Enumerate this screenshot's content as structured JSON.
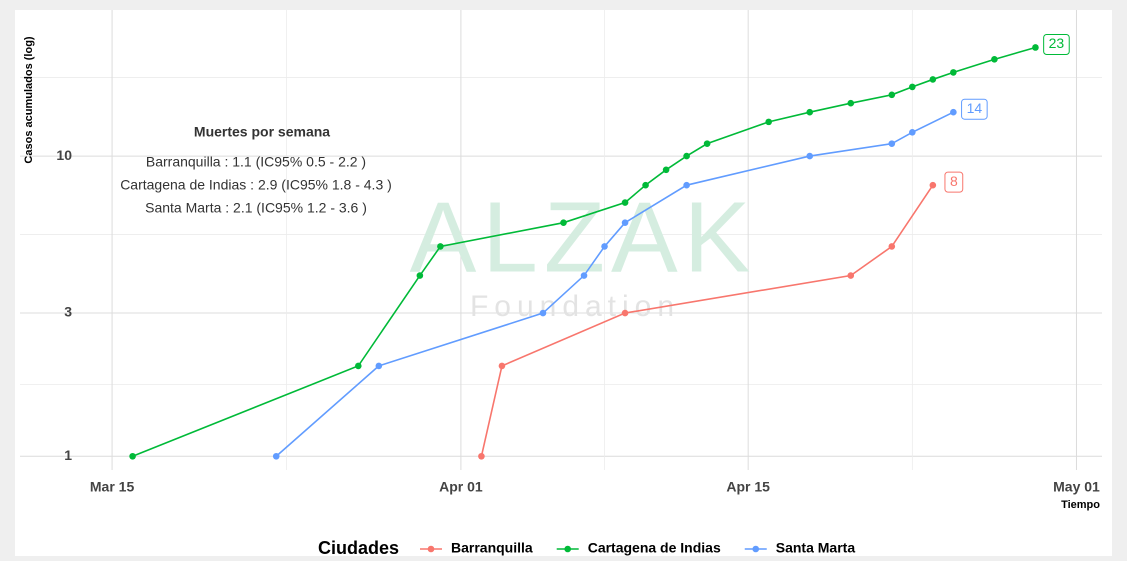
{
  "chart_data": {
    "type": "line",
    "y_label": "Casos acumulados (log)",
    "x_label": "Tiempo",
    "log_y": true,
    "grid": true,
    "xlim": [
      "03-11",
      "05-02"
    ],
    "xticks": [
      {
        "value": "03-15",
        "label": "Mar 15"
      },
      {
        "value": "04-01",
        "label": "Apr 01"
      },
      {
        "value": "04-15",
        "label": "Apr 15"
      },
      {
        "value": "05-01",
        "label": "May 01"
      }
    ],
    "ylim": [
      0.9,
      26.3
    ],
    "yticks": [
      1,
      3,
      10
    ],
    "legend_title": "Ciudades",
    "legend_position": "bottom",
    "annotation": {
      "title": "Muertes por semana",
      "lines": [
        "Barranquilla : 1.1 (IC95% 0.5 - 2.2 )",
        "Cartagena de Indias : 2.9 (IC95% 1.8 - 4.3 )",
        "Santa Marta : 2.1 (IC95% 1.2 - 3.6 )"
      ]
    },
    "watermark": {
      "title": "ALZAK",
      "subtitle": "Foundation"
    },
    "series": [
      {
        "name": "Barranquilla",
        "color": "#F8766D",
        "x": [
          "04-02",
          "04-03",
          "04-09",
          "04-20",
          "04-22",
          "04-24"
        ],
        "values": [
          1,
          2,
          3,
          4,
          5,
          8
        ]
      },
      {
        "name": "Cartagena de Indias",
        "color": "#00BA38",
        "x": [
          "03-16",
          "03-27",
          "03-30",
          "03-31",
          "04-06",
          "04-09",
          "04-10",
          "04-11",
          "04-12",
          "04-13",
          "04-16",
          "04-18",
          "04-20",
          "04-22",
          "04-23",
          "04-24",
          "04-25",
          "04-27",
          "04-29"
        ],
        "values": [
          1,
          2,
          4,
          5,
          6,
          7,
          8,
          9,
          10,
          11,
          13,
          14,
          15,
          16,
          17,
          18,
          19,
          21,
          23
        ]
      },
      {
        "name": "Santa Marta",
        "color": "#619CFF",
        "x": [
          "03-23",
          "03-28",
          "04-05",
          "04-07",
          "04-08",
          "04-09",
          "04-12",
          "04-18",
          "04-22",
          "04-23",
          "04-25"
        ],
        "values": [
          1,
          2,
          3,
          4,
          5,
          6,
          8,
          10,
          11,
          12,
          14
        ]
      }
    ]
  }
}
